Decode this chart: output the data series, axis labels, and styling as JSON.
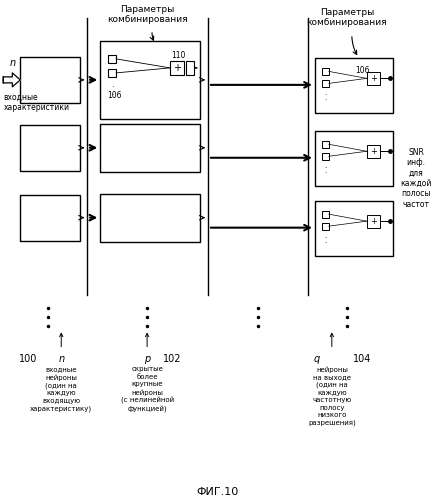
{
  "title": "ФИГ.10",
  "bg_color": "#ffffff",
  "input_label": "входные\nхарактеристики",
  "label_100": "100",
  "label_102": "102",
  "label_104": "104",
  "label_n": "n",
  "label_p": "p",
  "label_q": "q",
  "desc_n": "входные\nнейроны\n(один на\nкаждую\nвходящую\nхарактеристику)",
  "desc_p": "скрытые\nболее\nкрупные\nнейроны\n(с нелинейной\nфункцией)",
  "desc_q": "нейроны\nна выходе\n(один на\nкаждую\nчастотную\nполосу\nнизкого\nразрешения)",
  "params_label1": "Параметры\nкомбинирования",
  "params_label2": "Параметры\nкомбинирования",
  "snr_label": "SNR\nинф.\nдля\nкаждой\nполосы\nчастот",
  "label_110": "110",
  "label_106a": "106",
  "label_106b": "106"
}
